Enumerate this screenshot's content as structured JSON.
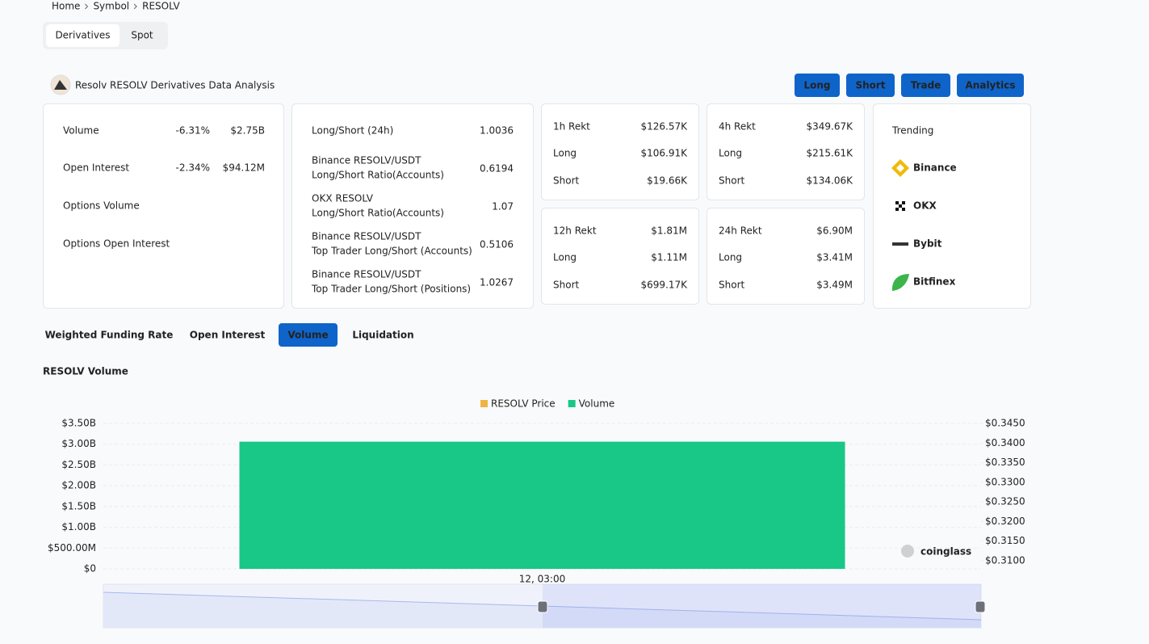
{
  "breadcrumb": [
    "Home",
    "Symbol",
    "RESOLV"
  ],
  "market_tabs": {
    "items": [
      "Derivatives",
      "Spot"
    ],
    "active": 0
  },
  "header": {
    "title": "Resolv RESOLV Derivatives Data Analysis"
  },
  "actions": [
    "Long",
    "Short",
    "Trade",
    "Analytics"
  ],
  "overview": [
    {
      "label": "Volume",
      "change": "-6.31%",
      "value": "$2.75B"
    },
    {
      "label": "Open Interest",
      "change": "-2.34%",
      "value": "$94.12M"
    },
    {
      "label": "Options Volume"
    },
    {
      "label": "Options Open Interest"
    }
  ],
  "ratios": [
    {
      "title": "Long/Short (24h)",
      "value": "1.0036"
    },
    {
      "title": "Binance RESOLV/USDT",
      "subtitle": "Long/Short Ratio(Accounts)",
      "value": "0.6194"
    },
    {
      "title": "OKX RESOLV",
      "subtitle": "Long/Short Ratio(Accounts)",
      "value": "1.07"
    },
    {
      "title": "Binance RESOLV/USDT",
      "subtitle": "Top Trader Long/Short (Accounts)",
      "value": "0.5106"
    },
    {
      "title": "Binance RESOLV/USDT",
      "subtitle": "Top Trader Long/Short (Positions)",
      "value": "1.0267"
    }
  ],
  "rekt_labels": {
    "long": "Long",
    "short": "Short"
  },
  "rekt": [
    {
      "period": "1h Rekt",
      "total": "$126.57K",
      "long": "$106.91K",
      "short": "$19.66K"
    },
    {
      "period": "4h Rekt",
      "total": "$349.67K",
      "long": "$215.61K",
      "short": "$134.06K"
    },
    {
      "period": "12h Rekt",
      "total": "$1.81M",
      "long": "$1.11M",
      "short": "$699.17K"
    },
    {
      "period": "24h Rekt",
      "total": "$6.90M",
      "long": "$3.41M",
      "short": "$3.49M"
    }
  ],
  "trending": {
    "title": "Trending",
    "exchanges": [
      "Binance",
      "OKX",
      "Bybit",
      "Bitfinex"
    ]
  },
  "chart_tabs": {
    "items": [
      "Weighted Funding Rate",
      "Open Interest",
      "Volume",
      "Liquidation"
    ],
    "active": 2
  },
  "chart_data": {
    "type": "bar",
    "title": "RESOLV Volume",
    "categories": [
      "12, 03:00"
    ],
    "series": [
      {
        "name": "RESOLV Price",
        "color": "#f0b443",
        "axis": "y2",
        "values": [
          null
        ]
      },
      {
        "name": "Volume",
        "color": "#19c787",
        "values": [
          3060000000
        ]
      }
    ],
    "ylim": [
      0,
      3500000000
    ],
    "yticks": [
      {
        "value": 0,
        "label": "$0"
      },
      {
        "value": 500000000,
        "label": "$500.00M"
      },
      {
        "value": 1000000000,
        "label": "$1.00B"
      },
      {
        "value": 1500000000,
        "label": "$1.50B"
      },
      {
        "value": 2000000000,
        "label": "$2.00B"
      },
      {
        "value": 2500000000,
        "label": "$2.50B"
      },
      {
        "value": 3000000000,
        "label": "$3.00B"
      },
      {
        "value": 3500000000,
        "label": "$3.50B"
      }
    ],
    "y2lim": [
      0.3079,
      0.345
    ],
    "y2ticks": [
      {
        "value": 0.31,
        "label": "$0.3100"
      },
      {
        "value": 0.315,
        "label": "$0.3150"
      },
      {
        "value": 0.32,
        "label": "$0.3200"
      },
      {
        "value": 0.325,
        "label": "$0.3250"
      },
      {
        "value": 0.33,
        "label": "$0.3300"
      },
      {
        "value": 0.335,
        "label": "$0.3350"
      },
      {
        "value": 0.34,
        "label": "$0.3400"
      },
      {
        "value": 0.345,
        "label": "$0.3450"
      }
    ],
    "grid": true,
    "watermark": "coinglass"
  }
}
